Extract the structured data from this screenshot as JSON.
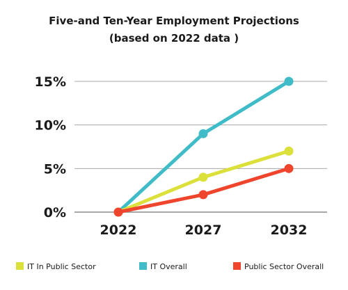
{
  "chart_data": {
    "type": "line",
    "title": "Five-and Ten-Year Employment Projections",
    "subtitle": "(based on 2022 data )",
    "xlabel": "",
    "ylabel": "",
    "categories": [
      "2022",
      "2027",
      "2032"
    ],
    "ylim": [
      0,
      15
    ],
    "yticks": [
      "0%",
      "5%",
      "10%",
      "15%"
    ],
    "ytick_values": [
      0,
      5,
      10,
      15
    ],
    "grid": "horizontal",
    "legend_position": "bottom",
    "series": [
      {
        "name": "IT In Public Sector",
        "values": [
          0,
          4,
          7
        ],
        "color": "#dce03a"
      },
      {
        "name": "IT Overall",
        "values": [
          0,
          9,
          15
        ],
        "color": "#3fbcc7"
      },
      {
        "name": "Public Sector Overall",
        "values": [
          0,
          2,
          5
        ],
        "color": "#ee452c"
      }
    ],
    "draw_order": [
      1,
      0,
      2
    ]
  }
}
